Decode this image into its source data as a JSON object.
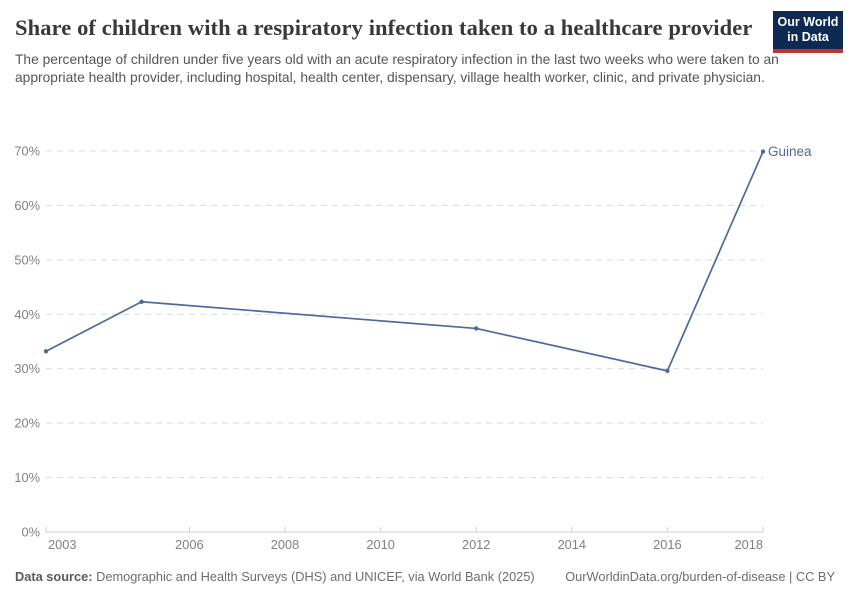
{
  "header": {
    "title": "Share of children with a respiratory infection taken to a healthcare provider",
    "subtitle": "The percentage of children under five years old with an acute respiratory infection in the last two weeks who were taken to an appropriate health provider, including hospital, health center, dispensary, village health worker, clinic, and private physician.",
    "logo": {
      "line1": "Our World",
      "line2": "in Data",
      "bg_color": "#0d2a53",
      "bar_color": "#bd362c"
    }
  },
  "chart_data": {
    "type": "line",
    "title": "Share of children with a respiratory infection taken to a healthcare provider",
    "xlabel": "",
    "ylabel": "",
    "xlim": [
      2003,
      2018
    ],
    "ylim": [
      0,
      70
    ],
    "x_ticks": [
      2003,
      2006,
      2008,
      2010,
      2012,
      2014,
      2016,
      2018
    ],
    "y_ticks": [
      0,
      10,
      20,
      30,
      40,
      50,
      60,
      70
    ],
    "y_tick_suffix": "%",
    "grid": "horizontal-dashed",
    "legend_position": "end-of-line-label",
    "series": [
      {
        "name": "Guinea",
        "color": "#4c6a9c",
        "points": [
          {
            "x": 2003,
            "y": 33.2
          },
          {
            "x": 2005,
            "y": 42.3
          },
          {
            "x": 2012,
            "y": 37.4
          },
          {
            "x": 2016,
            "y": 29.6
          },
          {
            "x": 2018,
            "y": 69.9
          }
        ]
      }
    ]
  },
  "footer": {
    "source_label": "Data source:",
    "source_text": " Demographic and Health Surveys (DHS) and UNICEF, via World Bank (2025)",
    "citation": "OurWorldinData.org/burden-of-disease | CC BY"
  }
}
